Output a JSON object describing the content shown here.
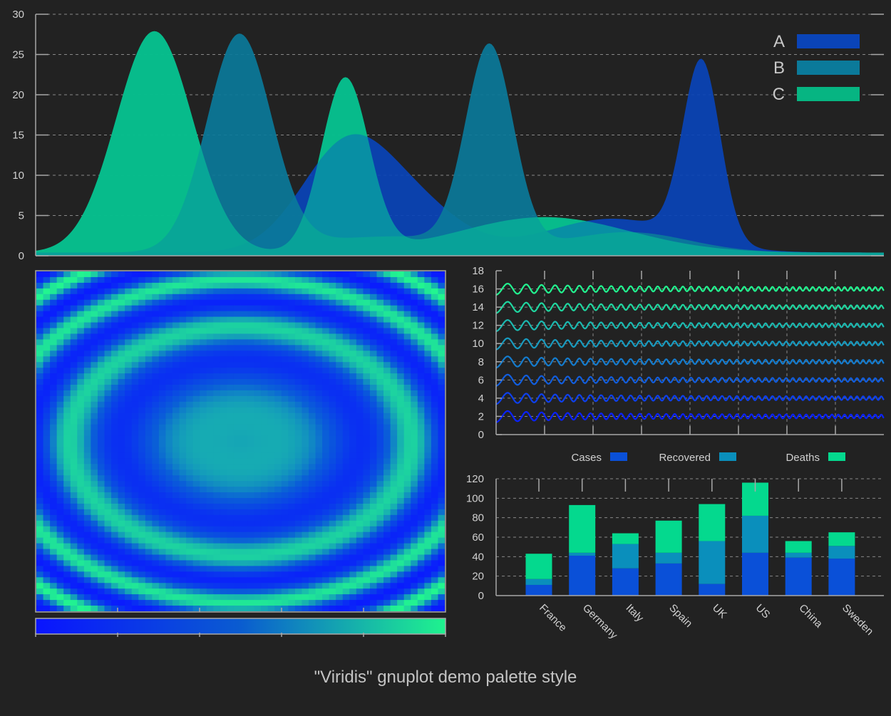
{
  "title": "\"Viridis\" gnuplot demo palette style",
  "colors": {
    "background": "#222222",
    "series_a": "#0a44b8",
    "series_b": "#0b7a9a",
    "series_c": "#06b582",
    "c_light": "#07c798",
    "wave_low": "#0a22ff",
    "wave_high": "#22f590",
    "bar_cases": "#0a50d8",
    "bar_recovered": "#0a8fbc",
    "bar_deaths": "#04d98e"
  },
  "chart_data": [
    {
      "type": "area",
      "series": [
        {
          "name": "A",
          "peaks": [
            {
              "x": 0.37,
              "y": 13.8,
              "w": 0.055
            },
            {
              "x": 0.46,
              "y": 4.0,
              "w": 0.05
            },
            {
              "x": 0.68,
              "y": 4.2,
              "w": 0.08
            },
            {
              "x": 0.785,
              "y": 22.3,
              "w": 0.022
            }
          ]
        },
        {
          "name": "B",
          "peaks": [
            {
              "x": 0.24,
              "y": 26.8,
              "w": 0.038
            },
            {
              "x": 0.535,
              "y": 24.8,
              "w": 0.028
            },
            {
              "x": 0.42,
              "y": 2.0,
              "w": 0.1
            },
            {
              "x": 0.7,
              "y": 2.5,
              "w": 0.07
            }
          ]
        },
        {
          "name": "C",
          "peaks": [
            {
              "x": 0.14,
              "y": 27.5,
              "w": 0.045
            },
            {
              "x": 0.365,
              "y": 21.5,
              "w": 0.028
            },
            {
              "x": 0.6,
              "y": 4.4,
              "w": 0.1
            }
          ]
        }
      ],
      "legend": [
        "A",
        "B",
        "C"
      ],
      "legend_position": "top-right",
      "xlim": [
        0,
        1
      ],
      "ylim": [
        0,
        30
      ],
      "yticks": [
        0,
        5,
        10,
        15,
        20,
        25,
        30
      ],
      "grid": true
    },
    {
      "type": "heatmap",
      "description_palette": "blue-to-green",
      "xlim": [
        -1,
        1
      ],
      "ylim": [
        -1,
        1
      ],
      "colorbar": true
    },
    {
      "type": "line",
      "series_count": 8,
      "offsets": [
        2,
        4,
        6,
        8,
        10,
        12,
        14,
        16
      ],
      "ylim": [
        0,
        18
      ],
      "yticks": [
        0,
        2,
        4,
        6,
        8,
        10,
        12,
        14,
        16,
        18
      ],
      "grid": true
    },
    {
      "type": "bar",
      "stacked": true,
      "categories": [
        "France",
        "Germany",
        "Italy",
        "Spain",
        "UK",
        "US",
        "China",
        "Sweden"
      ],
      "series": [
        {
          "name": "Cases",
          "values": [
            11,
            41,
            28,
            33,
            12,
            44,
            39,
            38
          ]
        },
        {
          "name": "Recovered",
          "values": [
            6,
            3,
            25,
            11,
            44,
            38,
            5,
            13
          ]
        },
        {
          "name": "Deaths",
          "values": [
            26,
            49,
            11,
            33,
            38,
            34,
            12,
            14
          ]
        }
      ],
      "legend_position": "top",
      "ylim": [
        0,
        120
      ],
      "yticks": [
        0,
        20,
        40,
        60,
        80,
        100,
        120
      ],
      "grid": true
    }
  ]
}
